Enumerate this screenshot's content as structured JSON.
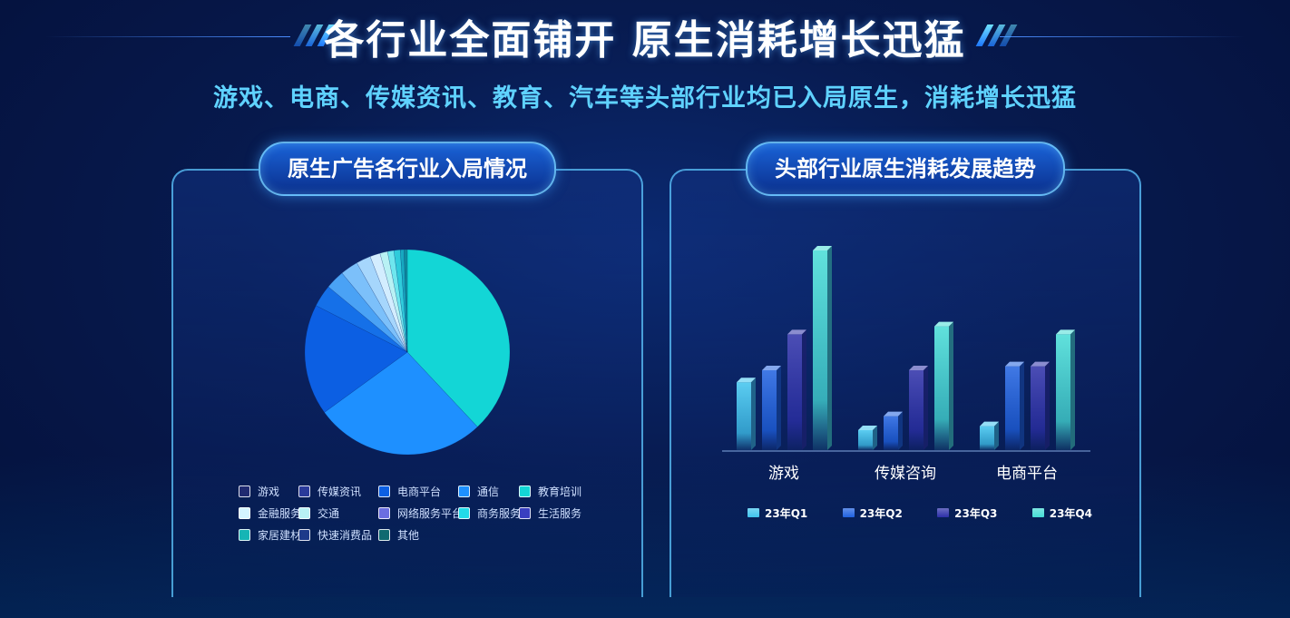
{
  "header": {
    "title": "各行业全面铺开 原生消耗增长迅猛",
    "subtitle": "游戏、电商、传媒资讯、教育、汽车等头部行业均已入局原生，消耗增长迅猛"
  },
  "colors": {
    "background": "#071a4e",
    "accent": "#5fd2ff",
    "panel_border": "#5fc8ff"
  },
  "left_panel": {
    "title": "原生广告各行业入局情况"
  },
  "right_panel": {
    "title": "头部行业原生消耗发展趋势"
  },
  "chart_data": [
    {
      "type": "pie",
      "title": "原生广告各行业入局情况",
      "legend_position": "bottom",
      "slices": [
        {
          "label": "游戏",
          "value": 38.0,
          "color": "#13d6d6"
        },
        {
          "label": "传媒资讯",
          "value": 27.0,
          "color": "#1e90ff"
        },
        {
          "label": "电商平台",
          "value": 17.5,
          "color": "#0c5fe3"
        },
        {
          "label": "通信",
          "value": 3.5,
          "color": "#1570e8"
        },
        {
          "label": "教育培训",
          "value": 3.0,
          "color": "#4aa2f5"
        },
        {
          "label": "金融服务",
          "value": 2.8,
          "color": "#7cc0fa"
        },
        {
          "label": "交通",
          "value": 2.3,
          "color": "#a6d6fc"
        },
        {
          "label": "网络服务平台",
          "value": 1.6,
          "color": "#d3edff"
        },
        {
          "label": "商务服务",
          "value": 1.2,
          "color": "#b8f1f4"
        },
        {
          "label": "生活服务",
          "value": 1.0,
          "color": "#6ee6ee"
        },
        {
          "label": "家居建材",
          "value": 1.0,
          "color": "#2fcbdb"
        },
        {
          "label": "快速消费品",
          "value": 0.6,
          "color": "#17a8c0"
        },
        {
          "label": "其他",
          "value": 0.5,
          "color": "#0e8a9e"
        }
      ],
      "legend": [
        {
          "label": "游戏",
          "color": "#202a70"
        },
        {
          "label": "传媒资讯",
          "color": "#2a3a9a"
        },
        {
          "label": "电商平台",
          "color": "#0c5fe3"
        },
        {
          "label": "通信",
          "color": "#1e90ff"
        },
        {
          "label": "教育培训",
          "color": "#13d6d6"
        },
        {
          "label": "金融服务",
          "color": "#d3f4ff"
        },
        {
          "label": "交通",
          "color": "#b8f1f4"
        },
        {
          "label": "网络服务平台",
          "color": "#6b6ee0"
        },
        {
          "label": "商务服务",
          "color": "#22dbe8"
        },
        {
          "label": "生活服务",
          "color": "#3a3fc0"
        },
        {
          "label": "家居建材",
          "color": "#15b5b5"
        },
        {
          "label": "快速消费品",
          "color": "#1d3a8a"
        },
        {
          "label": "其他",
          "color": "#0f6a70"
        }
      ]
    },
    {
      "type": "bar",
      "title": "头部行业原生消耗发展趋势",
      "categories": [
        "游戏",
        "传媒咨询",
        "电商平台"
      ],
      "series": [
        {
          "name": "23年Q1",
          "values": [
            34,
            10,
            12
          ],
          "color": "#3fc4ee"
        },
        {
          "name": "23年Q2",
          "values": [
            40,
            17,
            42
          ],
          "color": "#1f61e0"
        },
        {
          "name": "23年Q3",
          "values": [
            58,
            40,
            42
          ],
          "color": "#2c2fa8"
        },
        {
          "name": "23年Q4",
          "values": [
            100,
            62,
            58
          ],
          "color": "#45dcd6"
        }
      ],
      "ylim": [
        0,
        100
      ],
      "grid": false,
      "legend_position": "bottom"
    }
  ]
}
